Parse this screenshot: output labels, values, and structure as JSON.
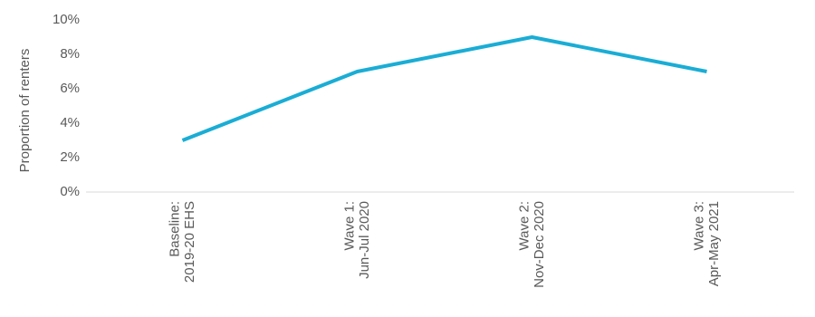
{
  "chart_data": {
    "type": "line",
    "y_label": "Proportion of renters",
    "categories": [
      "Baseline:\n2019-20 EHS",
      "Wave 1:\nJun-Jul 2020",
      "Wave 2:\nNov-Dec 2020",
      "Wave 3:\nApr-May 2021"
    ],
    "series": [
      {
        "name": "Proportion of renters",
        "color": "#1aadd5",
        "values": [
          3,
          7,
          9,
          7
        ]
      }
    ],
    "ylim": [
      0,
      10
    ],
    "yticks": [
      {
        "value": 0,
        "label": "0%"
      },
      {
        "value": 2,
        "label": "2%"
      },
      {
        "value": 4,
        "label": "4%"
      },
      {
        "value": 6,
        "label": "6%"
      },
      {
        "value": 8,
        "label": "8%"
      },
      {
        "value": 10,
        "label": "10%"
      }
    ],
    "grid": false
  }
}
